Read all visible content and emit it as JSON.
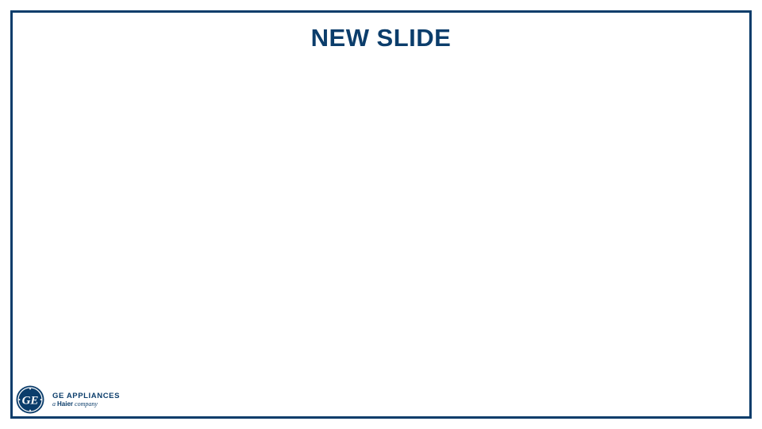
{
  "slide": {
    "title": "NEW SLIDE"
  },
  "logo": {
    "monogram": "GE",
    "brand": "GE APPLIANCES",
    "tagline_prefix": "a",
    "tagline_company": "Haier",
    "tagline_suffix": "company"
  },
  "colors": {
    "brand_navy": "#0b3d6b",
    "background": "#ffffff"
  }
}
